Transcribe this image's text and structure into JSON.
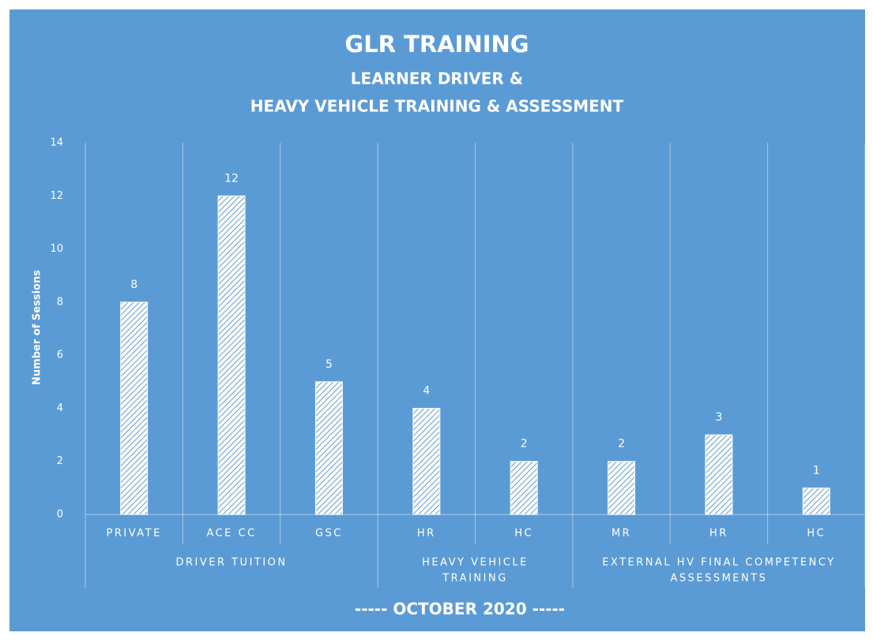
{
  "chart_data": {
    "type": "bar",
    "title": "GLR TRAINING",
    "subtitle": [
      "LEARNER DRIVER &",
      "HEAVY VEHICLE TRAINING & ASSESSMENT"
    ],
    "y_label": "Number of Sessions",
    "x_label": "----- OCTOBER 2020 -----",
    "categories": [
      "PRIVATE",
      "ACE CC",
      "GSC",
      "HR",
      "HC",
      "MR",
      "HR",
      "HC"
    ],
    "groups": [
      {
        "label": [
          "DRIVER TUITION"
        ],
        "span": 3
      },
      {
        "label": [
          "HEAVY VEHICLE",
          "TRAINING"
        ],
        "span": 2
      },
      {
        "label": [
          "EXTERNAL HV FINAL COMPETENCY",
          "ASSESSMENTS"
        ],
        "span": 3
      }
    ],
    "values": [
      8,
      12,
      5,
      4,
      2,
      2,
      3,
      1
    ],
    "color": "#ffffff",
    "ylim": [
      0,
      14
    ],
    "yticks": [
      0,
      2,
      4,
      6,
      8,
      10,
      12,
      14
    ],
    "grid": false
  }
}
